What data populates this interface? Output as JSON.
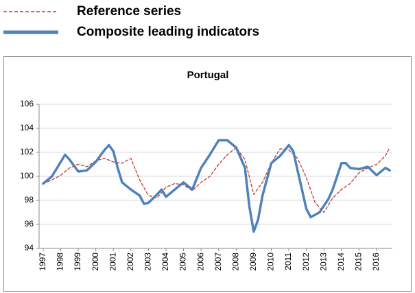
{
  "chart_data": {
    "type": "line",
    "title": "Portugal",
    "xlim": [
      1996.77,
      2016.9
    ],
    "xticks": [
      1997,
      1998,
      1999,
      2000,
      2001,
      2002,
      2003,
      2004,
      2005,
      2006,
      2007,
      2008,
      2009,
      2010,
      2011,
      2012,
      2013,
      2014,
      2015,
      2016
    ],
    "ylim": [
      94,
      106
    ],
    "yticks": [
      94,
      96,
      98,
      100,
      102,
      104,
      106
    ],
    "grid": true,
    "series": [
      {
        "name": "Reference series",
        "color": "#c0392b",
        "dashed": true,
        "x": [
          1997,
          1997.5,
          1998,
          1998.5,
          1999,
          1999.5,
          2000,
          2000.5,
          2001,
          2001.5,
          2002,
          2002.5,
          2003,
          2003.5,
          2004,
          2004.5,
          2005,
          2005.5,
          2006,
          2006.5,
          2007,
          2007.5,
          2008,
          2008.5,
          2009,
          2009.5,
          2010,
          2010.5,
          2011,
          2011.5,
          2012,
          2012.5,
          2013,
          2013.5,
          2014,
          2014.5,
          2015,
          2015.5,
          2016,
          2016.5,
          2016.75
        ],
        "values": [
          99.4,
          99.7,
          100.1,
          100.7,
          101.0,
          100.8,
          101.3,
          101.5,
          101.2,
          101.1,
          101.5,
          99.7,
          98.4,
          98.2,
          99.1,
          99.4,
          99.3,
          98.8,
          99.5,
          100.0,
          101.0,
          101.8,
          102.4,
          101.4,
          98.5,
          99.5,
          101.1,
          102.3,
          102.2,
          101.5,
          99.9,
          97.8,
          97.0,
          98.2,
          98.9,
          99.4,
          100.3,
          100.7,
          101.0,
          101.7,
          102.4
        ]
      },
      {
        "name": "Composite leading indicators",
        "color": "#4f81bd",
        "dashed": false,
        "x": [
          1997,
          1997.5,
          1998,
          1998.25,
          1998.5,
          1999,
          1999.5,
          2000,
          2000.5,
          2000.75,
          2001,
          2001.25,
          2001.5,
          2002,
          2002.5,
          2002.75,
          2003,
          2003.5,
          2003.75,
          2004,
          2004.5,
          2005,
          2005.5,
          2006,
          2006.5,
          2007,
          2007.5,
          2008,
          2008.5,
          2008.75,
          2009,
          2009.25,
          2009.5,
          2010,
          2010.5,
          2011,
          2011.25,
          2011.5,
          2012,
          2012.25,
          2012.75,
          2013.25,
          2013.5,
          2014,
          2014.25,
          2014.5,
          2015,
          2015.5,
          2016,
          2016.5,
          2016.75
        ],
        "values": [
          99.4,
          100.0,
          101.2,
          101.8,
          101.4,
          100.4,
          100.5,
          101.2,
          102.2,
          102.6,
          102.1,
          100.7,
          99.5,
          98.9,
          98.4,
          97.7,
          97.8,
          98.5,
          98.9,
          98.3,
          98.9,
          99.5,
          98.9,
          100.7,
          101.8,
          103.0,
          103.0,
          102.4,
          100.7,
          97.5,
          95.4,
          96.4,
          98.4,
          101.1,
          101.7,
          102.6,
          102.1,
          100.5,
          97.3,
          96.6,
          97.0,
          98.1,
          98.9,
          101.1,
          101.1,
          100.7,
          100.6,
          100.8,
          100.1,
          100.7,
          100.5
        ]
      }
    ]
  }
}
